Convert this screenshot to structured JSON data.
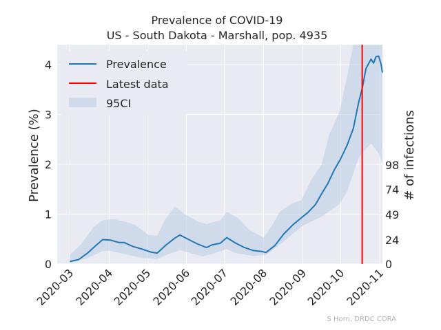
{
  "chart_data": {
    "type": "line",
    "title": "Prevalence of COVID-19",
    "subtitle": "US - South Dakota - Marshall, pop. 4935",
    "ylabel": "Prevalence (%)",
    "ylabel_right": "# of infections",
    "ylim": [
      0,
      4.4
    ],
    "yticks": [
      0,
      1,
      2,
      3,
      4
    ],
    "yticks_right": [
      {
        "value": 0,
        "label": "0"
      },
      {
        "value": 0.486,
        "label": "24"
      },
      {
        "value": 0.993,
        "label": "49"
      },
      {
        "value": 1.499,
        "label": "74"
      },
      {
        "value": 1.986,
        "label": "98"
      }
    ],
    "xlim": [
      "2020-02-20",
      "2020-11-03"
    ],
    "xticks": [
      "2020-03",
      "2020-04",
      "2020-05",
      "2020-06",
      "2020-07",
      "2020-08",
      "2020-09",
      "2020-10",
      "2020-11"
    ],
    "xtick_dates": [
      "2020-03-01",
      "2020-04-01",
      "2020-05-01",
      "2020-06-01",
      "2020-07-01",
      "2020-08-01",
      "2020-09-01",
      "2020-10-01",
      "2020-11-01"
    ],
    "grid": true,
    "legend": {
      "position": "top-left",
      "entries": [
        "Prevalence",
        "Latest data",
        "95CI"
      ]
    },
    "latest_data": "2020-10-18",
    "colors": {
      "prevalence": "#1f77b4",
      "latest": "#ff0000",
      "ci": "#b8cce4",
      "plot_bg": "#eaeaf2",
      "grid": "#ffffff"
    },
    "series": [
      {
        "name": "Prevalence",
        "points": [
          [
            "2020-03-01",
            0.05
          ],
          [
            "2020-03-08",
            0.09
          ],
          [
            "2020-03-15",
            0.22
          ],
          [
            "2020-03-22",
            0.38
          ],
          [
            "2020-03-27",
            0.49
          ],
          [
            "2020-04-02",
            0.48
          ],
          [
            "2020-04-09",
            0.43
          ],
          [
            "2020-04-13",
            0.43
          ],
          [
            "2020-04-20",
            0.35
          ],
          [
            "2020-04-27",
            0.3
          ],
          [
            "2020-05-04",
            0.24
          ],
          [
            "2020-05-09",
            0.22
          ],
          [
            "2020-05-16",
            0.38
          ],
          [
            "2020-05-23",
            0.52
          ],
          [
            "2020-05-27",
            0.58
          ],
          [
            "2020-06-03",
            0.49
          ],
          [
            "2020-06-10",
            0.4
          ],
          [
            "2020-06-17",
            0.33
          ],
          [
            "2020-06-21",
            0.38
          ],
          [
            "2020-06-28",
            0.42
          ],
          [
            "2020-07-03",
            0.53
          ],
          [
            "2020-07-10",
            0.42
          ],
          [
            "2020-07-17",
            0.33
          ],
          [
            "2020-07-24",
            0.27
          ],
          [
            "2020-07-31",
            0.25
          ],
          [
            "2020-08-03",
            0.23
          ],
          [
            "2020-08-10",
            0.37
          ],
          [
            "2020-08-17",
            0.6
          ],
          [
            "2020-08-24",
            0.78
          ],
          [
            "2020-08-31",
            0.93
          ],
          [
            "2020-09-05",
            1.03
          ],
          [
            "2020-09-11",
            1.19
          ],
          [
            "2020-09-16",
            1.41
          ],
          [
            "2020-09-21",
            1.62
          ],
          [
            "2020-09-26",
            1.89
          ],
          [
            "2020-10-01",
            2.11
          ],
          [
            "2020-10-06",
            2.38
          ],
          [
            "2020-10-11",
            2.72
          ],
          [
            "2020-10-15",
            3.22
          ],
          [
            "2020-10-18",
            3.52
          ],
          [
            "2020-10-21",
            3.92
          ],
          [
            "2020-10-25",
            4.11
          ],
          [
            "2020-10-27",
            4.03
          ],
          [
            "2020-10-29",
            4.16
          ],
          [
            "2020-10-31",
            4.17
          ],
          [
            "2020-11-02",
            4.0
          ],
          [
            "2020-11-03",
            3.84
          ]
        ]
      }
    ],
    "ci_upper": [
      [
        "2020-03-01",
        0.18
      ],
      [
        "2020-03-10",
        0.4
      ],
      [
        "2020-03-20",
        0.75
      ],
      [
        "2020-03-27",
        0.88
      ],
      [
        "2020-04-05",
        0.9
      ],
      [
        "2020-04-14",
        0.85
      ],
      [
        "2020-04-22",
        0.78
      ],
      [
        "2020-05-02",
        0.58
      ],
      [
        "2020-05-09",
        0.57
      ],
      [
        "2020-05-16",
        0.92
      ],
      [
        "2020-05-23",
        1.15
      ],
      [
        "2020-06-01",
        0.98
      ],
      [
        "2020-06-10",
        0.85
      ],
      [
        "2020-06-17",
        0.8
      ],
      [
        "2020-06-28",
        0.88
      ],
      [
        "2020-07-03",
        1.05
      ],
      [
        "2020-07-12",
        0.92
      ],
      [
        "2020-07-20",
        0.7
      ],
      [
        "2020-08-01",
        0.53
      ],
      [
        "2020-08-08",
        0.78
      ],
      [
        "2020-08-14",
        1.05
      ],
      [
        "2020-08-24",
        1.22
      ],
      [
        "2020-08-31",
        1.28
      ],
      [
        "2020-09-08",
        1.7
      ],
      [
        "2020-09-16",
        2.0
      ],
      [
        "2020-09-22",
        2.6
      ],
      [
        "2020-09-30",
        3.05
      ],
      [
        "2020-10-06",
        3.75
      ],
      [
        "2020-10-11",
        4.4
      ],
      [
        "2020-11-03",
        4.4
      ]
    ],
    "ci_lower": [
      [
        "2020-11-03",
        2.02
      ],
      [
        "2020-10-31",
        2.22
      ],
      [
        "2020-10-25",
        2.42
      ],
      [
        "2020-10-18",
        2.23
      ],
      [
        "2020-10-15",
        2.12
      ],
      [
        "2020-10-06",
        1.45
      ],
      [
        "2020-09-30",
        1.2
      ],
      [
        "2020-09-16",
        0.95
      ],
      [
        "2020-09-05",
        0.82
      ],
      [
        "2020-08-31",
        0.75
      ],
      [
        "2020-08-17",
        0.45
      ],
      [
        "2020-08-03",
        0.18
      ],
      [
        "2020-07-24",
        0.16
      ],
      [
        "2020-07-10",
        0.22
      ],
      [
        "2020-07-03",
        0.3
      ],
      [
        "2020-06-21",
        0.2
      ],
      [
        "2020-06-14",
        0.15
      ],
      [
        "2020-05-27",
        0.28
      ],
      [
        "2020-05-16",
        0.18
      ],
      [
        "2020-05-09",
        0.1
      ],
      [
        "2020-04-27",
        0.12
      ],
      [
        "2020-04-13",
        0.2
      ],
      [
        "2020-04-02",
        0.26
      ],
      [
        "2020-03-27",
        0.26
      ],
      [
        "2020-03-15",
        0.12
      ],
      [
        "2020-03-01",
        0.02
      ]
    ]
  },
  "credit": "S Horn, DRDC CORA"
}
